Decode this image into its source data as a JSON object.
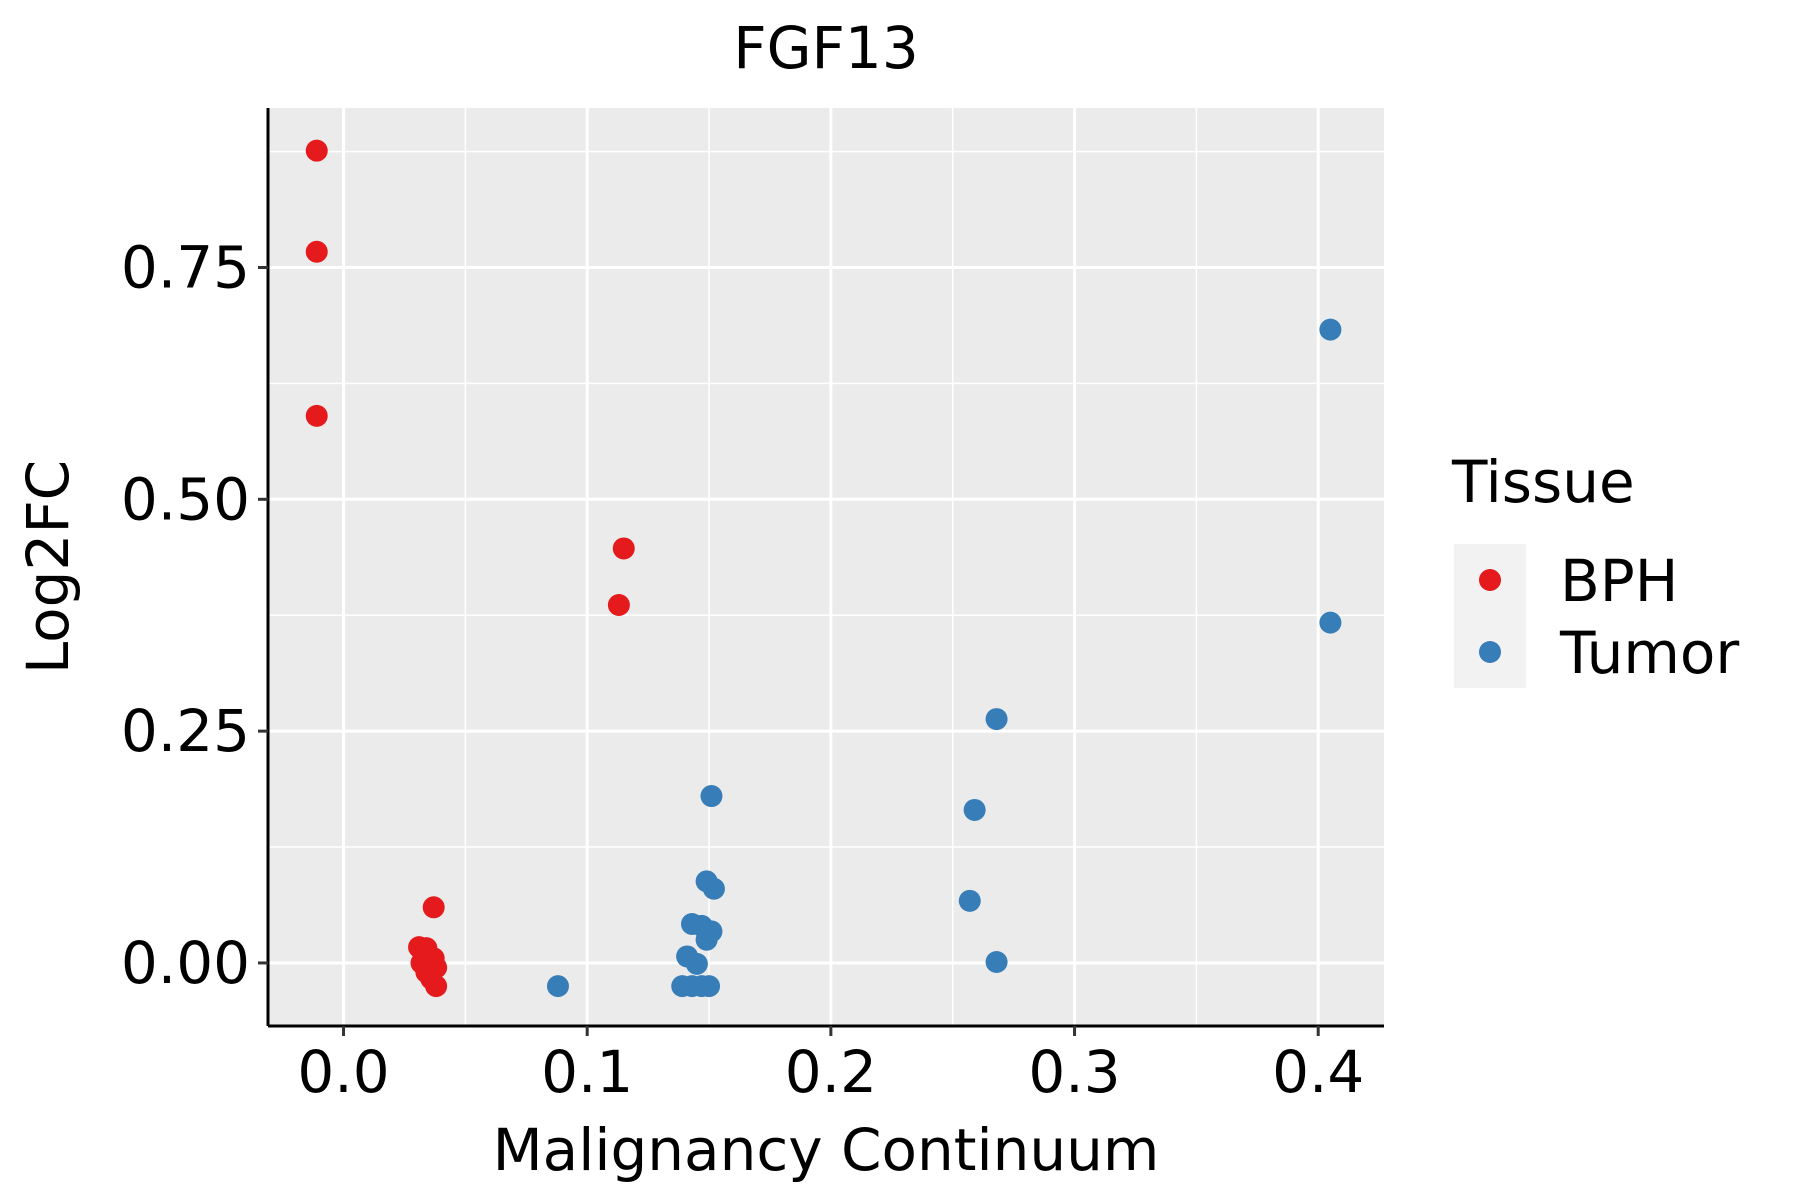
{
  "chart_data": {
    "type": "scatter",
    "title": "FGF13",
    "xlabel": "Malignancy Continuum",
    "ylabel": "Log2FC",
    "xlim": [
      -0.031,
      0.427
    ],
    "ylim": [
      -0.068,
      0.922
    ],
    "x_ticks": [
      0.0,
      0.1,
      0.2,
      0.3,
      0.4
    ],
    "x_tick_labels": [
      "0.0",
      "0.1",
      "0.2",
      "0.3",
      "0.4"
    ],
    "y_ticks": [
      0.0,
      0.25,
      0.5,
      0.75
    ],
    "y_tick_labels": [
      "0.00",
      "0.25",
      "0.50",
      "0.75"
    ],
    "grid": true,
    "legend": {
      "title": "Tissue",
      "position": "right",
      "entries": [
        "BPH",
        "Tumor"
      ]
    },
    "series": [
      {
        "name": "BPH",
        "color": "#E41A1C",
        "points": [
          {
            "x": -0.011,
            "y": 0.876
          },
          {
            "x": -0.011,
            "y": 0.767
          },
          {
            "x": -0.011,
            "y": 0.59
          },
          {
            "x": 0.115,
            "y": 0.447
          },
          {
            "x": 0.113,
            "y": 0.386
          },
          {
            "x": 0.037,
            "y": 0.06
          },
          {
            "x": 0.031,
            "y": 0.017
          },
          {
            "x": 0.034,
            "y": 0.016
          },
          {
            "x": 0.037,
            "y": 0.005
          },
          {
            "x": 0.032,
            "y": 0.0
          },
          {
            "x": 0.035,
            "y": -0.002
          },
          {
            "x": 0.038,
            "y": -0.005
          },
          {
            "x": 0.034,
            "y": -0.01
          },
          {
            "x": 0.036,
            "y": -0.017
          },
          {
            "x": 0.038,
            "y": -0.025
          }
        ]
      },
      {
        "name": "Tumor",
        "color": "#377EB8",
        "points": [
          {
            "x": 0.405,
            "y": 0.683
          },
          {
            "x": 0.405,
            "y": 0.367
          },
          {
            "x": 0.268,
            "y": 0.263
          },
          {
            "x": 0.259,
            "y": 0.165
          },
          {
            "x": 0.257,
            "y": 0.067
          },
          {
            "x": 0.268,
            "y": 0.001
          },
          {
            "x": 0.151,
            "y": 0.18
          },
          {
            "x": 0.149,
            "y": 0.088
          },
          {
            "x": 0.152,
            "y": 0.08
          },
          {
            "x": 0.143,
            "y": 0.042
          },
          {
            "x": 0.147,
            "y": 0.04
          },
          {
            "x": 0.151,
            "y": 0.034
          },
          {
            "x": 0.149,
            "y": 0.025
          },
          {
            "x": 0.141,
            "y": 0.007
          },
          {
            "x": 0.145,
            "y": -0.001
          },
          {
            "x": 0.088,
            "y": -0.025
          },
          {
            "x": 0.139,
            "y": -0.025
          },
          {
            "x": 0.143,
            "y": -0.025
          },
          {
            "x": 0.147,
            "y": -0.025
          },
          {
            "x": 0.15,
            "y": -0.025
          }
        ]
      }
    ]
  }
}
